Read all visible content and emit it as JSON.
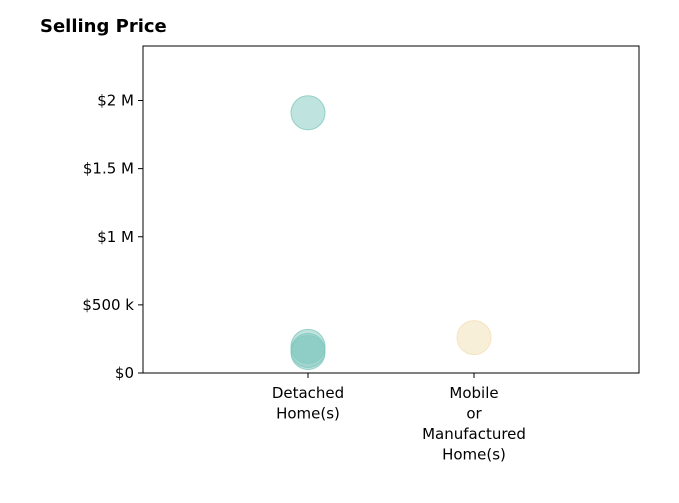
{
  "chart_data": {
    "type": "scatter",
    "title": "Selling Price",
    "xlabel": "",
    "ylabel": "",
    "categories": [
      "Detached Home(s)",
      "Mobile or Manufactured Home(s)"
    ],
    "category_label_lines": [
      [
        "Detached",
        "Home(s)"
      ],
      [
        "Mobile",
        "or",
        "Manufactured",
        "Home(s)"
      ]
    ],
    "ylim": [
      0,
      2400000
    ],
    "y_ticks": [
      {
        "value": 0,
        "label": "$0"
      },
      {
        "value": 500000,
        "label": "$500 k"
      },
      {
        "value": 1000000,
        "label": "$1 M"
      },
      {
        "value": 1500000,
        "label": "$1.5 M"
      },
      {
        "value": 2000000,
        "label": "$2 M"
      }
    ],
    "grid": false,
    "series": [
      {
        "category": "Detached Home(s)",
        "color": "#7fc8bd",
        "values": [
          1910000,
          195000,
          165000,
          150000
        ]
      },
      {
        "category": "Mobile or Manufactured Home(s)",
        "color": "#f2dfb4",
        "values": [
          260000
        ]
      }
    ]
  }
}
